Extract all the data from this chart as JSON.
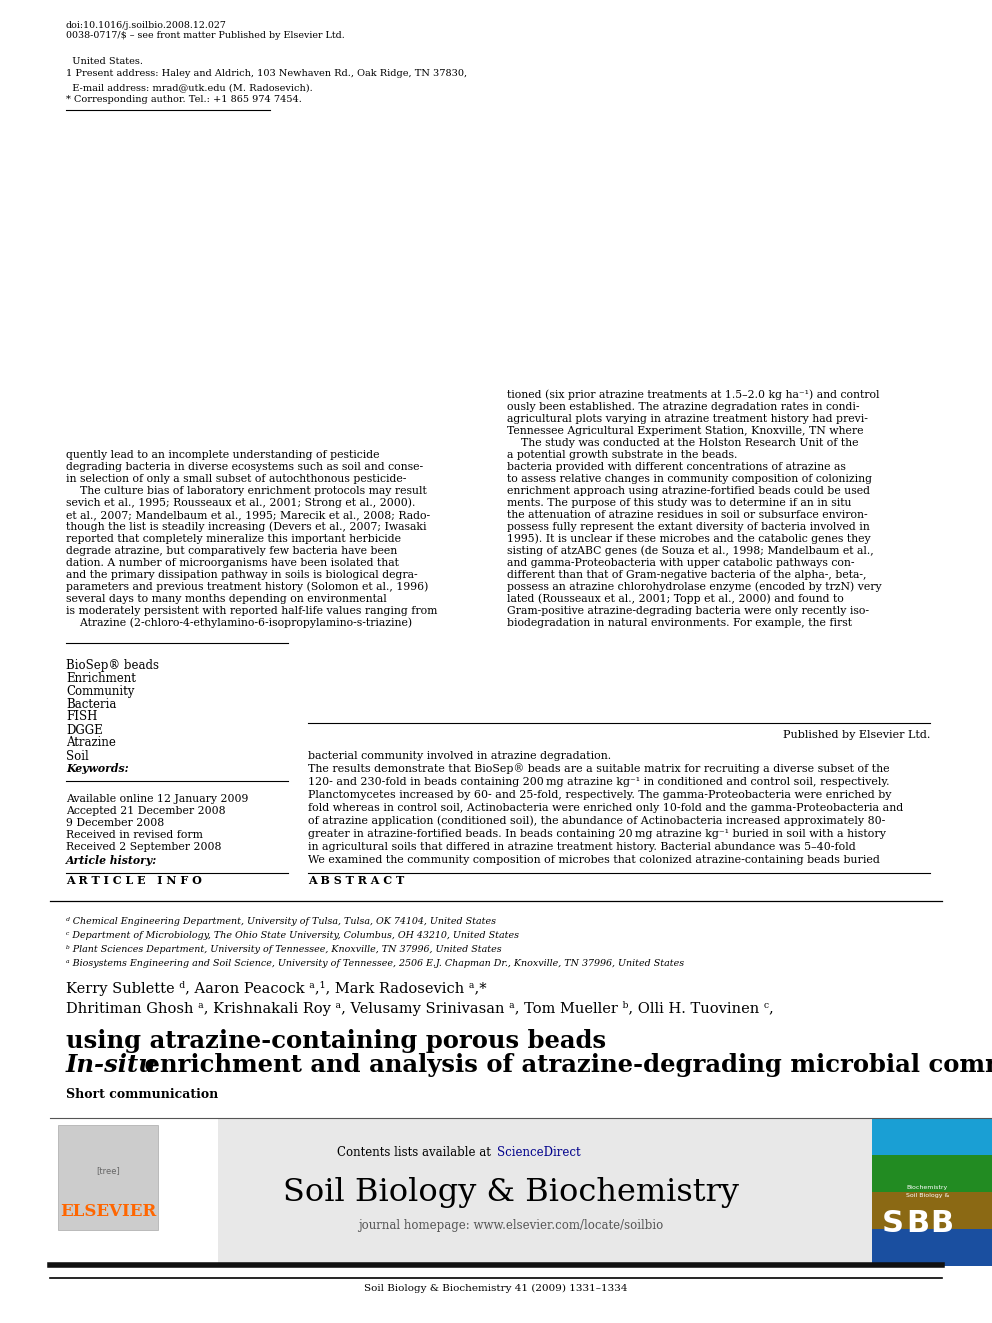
{
  "page_bg": "#ffffff",
  "top_journal_line": "Soil Biology & Biochemistry 41 (2009) 1331–1334",
  "header_bg": "#e8e8e8",
  "sciencedirect_color": "#00008B",
  "journal_title": "Soil Biology & Biochemistry",
  "journal_homepage": "journal homepage: www.elsevier.com/locate/soilbio",
  "article_info_title": "A R T I C L E   I N F O",
  "abstract_title": "A B S T R A C T",
  "article_history": "Received 2 September 2008\nReceived in revised form\n9 December 2008\nAccepted 21 December 2008\nAvailable online 12 January 2009",
  "keywords": "Soil\nAtrazine\nDGGE\nFISH\nBacteria\nCommunity\nEnrichment\nBioSep® beads",
  "abstract_text": "We examined the community composition of microbes that colonized atrazine-containing beads buried\nin agricultural soils that differed in atrazine treatment history. Bacterial abundance was 5–40-fold\ngreater in atrazine-fortified beads. In beads containing 20 mg atrazine kg⁻¹ buried in soil with a history\nof atrazine application (conditioned soil), the abundance of Actinobacteria increased approximately 80-\nfold whereas in control soil, Actinobacteria were enriched only 10-fold and the gamma-Proteobacteria and\nPlanctomycetes increased by 60- and 25-fold, respectively. The gamma-Proteobacteria were enriched by\n120- and 230-fold in beads containing 200 mg atrazine kg⁻¹ in conditioned and control soil, respectively.\nThe results demonstrate that BioSep® beads are a suitable matrix for recruiting a diverse subset of the\nbacterial community involved in atrazine degradation.",
  "published_by": "Published by Elsevier Ltd.",
  "affil_a": "ᵃ Biosystems Engineering and Soil Science, University of Tennessee, 2506 E.J. Chapman Dr., Knoxville, TN 37996, United States",
  "affil_b": "ᵇ Plant Sciences Department, University of Tennessee, Knoxville, TN 37996, United States",
  "affil_c": "ᶜ Department of Microbiology, The Ohio State University, Columbus, OH 43210, United States",
  "affil_d": "ᵈ Chemical Engineering Department, University of Tulsa, Tulsa, OK 74104, United States",
  "intro_text_left": "    Atrazine (2-chloro-4-ethylamino-6-isopropylamino-s-triazine)\nis moderately persistent with reported half-life values ranging from\nseveral days to many months depending on environmental\nparameters and previous treatment history (Solomon et al., 1996)\nand the primary dissipation pathway in soils is biological degra-\ndation. A number of microorganisms have been isolated that\ndegrade atrazine, but comparatively few bacteria have been\nreported that completely mineralize this important herbicide\nthough the list is steadily increasing (Devers et al., 2007; Iwasaki\net al., 2007; Mandelbaum et al., 1995; Marecik et al., 2008; Rado-\nsevich et al., 1995; Rousseaux et al., 2001; Strong et al., 2000).\n    The culture bias of laboratory enrichment protocols may result\nin selection of only a small subset of autochthonous pesticide-\ndegrading bacteria in diverse ecosystems such as soil and conse-\nquently lead to an incomplete understanding of pesticide",
  "intro_text_right": "biodegradation in natural environments. For example, the first\nGram-positive atrazine-degrading bacteria were only recently iso-\nlated (Rousseaux et al., 2001; Topp et al., 2000) and found to\npossess an atrazine chlorohydrolase enzyme (encoded by trzN) very\ndifferent than that of Gram-negative bacteria of the alpha-, beta-,\nand gamma-Proteobacteria with upper catabolic pathways con-\nsisting of atzABC genes (de Souza et al., 1998; Mandelbaum et al.,\n1995). It is unclear if these microbes and the catabolic genes they\npossess fully represent the extant diversity of bacteria involved in\nthe attenuation of atrazine residues in soil or subsurface environ-\nments. The purpose of this study was to determine if an in situ\nenrichment approach using atrazine-fortified beads could be used\nto assess relative changes in community composition of colonizing\nbacteria provided with different concentrations of atrazine as\na potential growth substrate in the beads.\n    The study was conducted at the Holston Research Unit of the\nTennessee Agricultural Experiment Station, Knoxville, TN where\nagricultural plots varying in atrazine treatment history had previ-\nously been established. The atrazine degradation rates in condi-\ntioned (six prior atrazine treatments at 1.5–2.0 kg ha⁻¹) and control",
  "footnote_star": "* Corresponding author. Tel.: +1 865 974 7454.\n  E-mail address: mrad@utk.edu (M. Radosevich).",
  "footnote_1": "1 Present address: Haley and Aldrich, 103 Newhaven Rd., Oak Ridge, TN 37830,\n  United States.",
  "issn_line": "0038-0717/$ – see front matter Published by Elsevier Ltd.\ndoi:10.1016/j.soilbio.2008.12.027",
  "elsevier_orange": "#FF6600"
}
